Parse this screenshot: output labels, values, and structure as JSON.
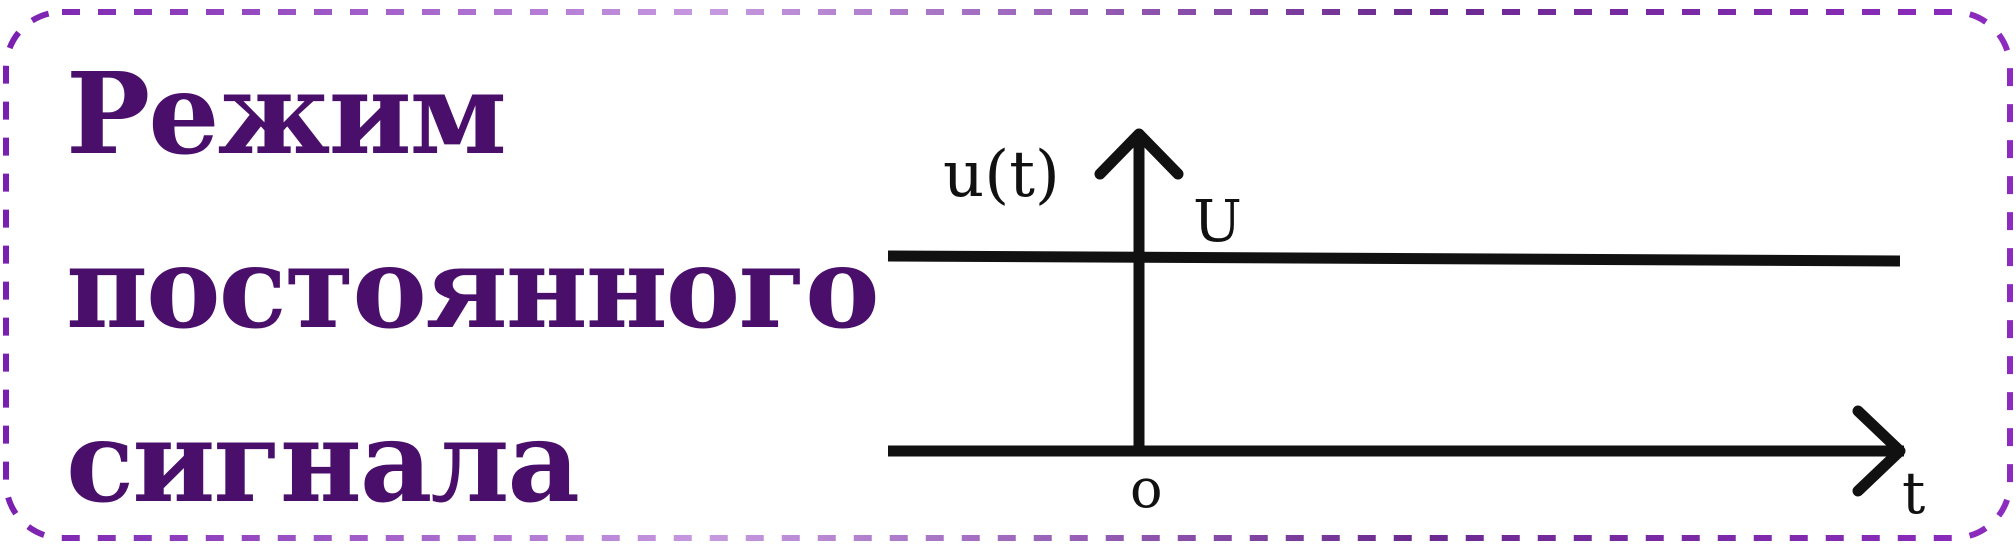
{
  "title": {
    "lines": [
      "Режим",
      "постоянного",
      "сигнала"
    ]
  },
  "diagram": {
    "y_axis_label": "u(t)",
    "x_axis_label": "t",
    "origin_label": "o",
    "level_label": "U"
  },
  "colors": {
    "title": "#4a0f6b",
    "border_dark": "#7a1fb0",
    "border_light": "#c79ae0",
    "lines": "#111111"
  }
}
